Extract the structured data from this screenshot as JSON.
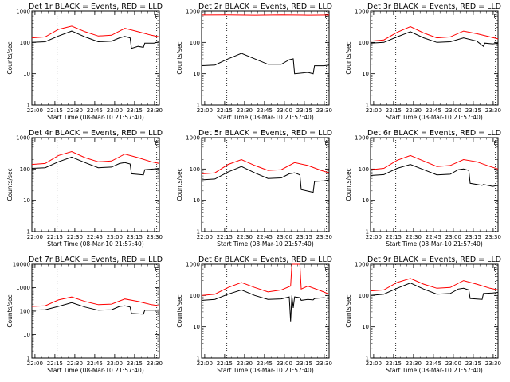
{
  "figure": {
    "x_axis_label": "Start Time (08-Mar-10 21:57:40)",
    "y_axis_label": "Counts/sec",
    "x_tick_labels": [
      "22:00",
      "22:15",
      "22:30",
      "22:45",
      "23:00",
      "23:15",
      "23:30"
    ],
    "colors": {
      "events": "#000000",
      "lld": "#ff0000",
      "marker_line": "#000000",
      "background": "#ffffff"
    },
    "flag_glyph": "E"
  },
  "chart_data": [
    {
      "type": "line",
      "title": "Det 1r BLACK = Events, RED = LLD",
      "scale": "log",
      "ylim": [
        1,
        1000
      ],
      "y_tick_labels": [
        "1",
        "10",
        "100",
        "1000"
      ],
      "x_range_minutes": [
        0,
        96
      ],
      "dotted_markers_min": [
        19,
        94
      ],
      "flag_min": 94,
      "series": [
        {
          "name": "Events",
          "color": "#000000",
          "x": [
            0,
            10,
            20,
            30,
            40,
            50,
            60,
            66,
            70,
            74,
            75,
            80,
            84,
            85,
            92,
            96
          ],
          "y": [
            100,
            105,
            160,
            230,
            150,
            105,
            110,
            140,
            155,
            140,
            65,
            75,
            70,
            95,
            95,
            105
          ]
        },
        {
          "name": "LLD",
          "color": "#ff0000",
          "x": [
            0,
            10,
            20,
            30,
            40,
            50,
            60,
            70,
            80,
            90,
            96
          ],
          "y": [
            140,
            150,
            260,
            330,
            220,
            160,
            170,
            280,
            220,
            170,
            150
          ]
        }
      ]
    },
    {
      "type": "line",
      "title": "Det 2r BLACK = Events, RED = LLD",
      "scale": "log",
      "ylim": [
        1,
        1000
      ],
      "y_tick_labels": [
        "1",
        "10",
        "100",
        "1000"
      ],
      "x_range_minutes": [
        0,
        96
      ],
      "dotted_markers_min": [
        19,
        94
      ],
      "flag_min": 94,
      "series": [
        {
          "name": "Events",
          "color": "#000000",
          "x": [
            0,
            10,
            20,
            30,
            40,
            50,
            60,
            66,
            69,
            70,
            80,
            84,
            85,
            92,
            96
          ],
          "y": [
            18,
            19,
            30,
            45,
            30,
            20,
            20,
            28,
            30,
            10,
            11,
            10,
            18,
            18,
            19
          ]
        },
        {
          "name": "LLD",
          "color": "#ff0000",
          "x": [
            0,
            20,
            40,
            60,
            80,
            96
          ],
          "y": [
            750,
            760,
            740,
            760,
            740,
            750
          ]
        }
      ]
    },
    {
      "type": "line",
      "title": "Det 3r BLACK = Events, RED = LLD",
      "scale": "log",
      "ylim": [
        1,
        1000
      ],
      "y_tick_labels": [
        "1",
        "10",
        "100",
        "1000"
      ],
      "x_range_minutes": [
        0,
        96
      ],
      "dotted_markers_min": [
        19,
        94
      ],
      "flag_min": 94,
      "series": [
        {
          "name": "Events",
          "color": "#000000",
          "x": [
            0,
            10,
            20,
            30,
            40,
            50,
            60,
            70,
            80,
            85,
            86,
            92,
            96
          ],
          "y": [
            95,
            100,
            150,
            220,
            140,
            100,
            105,
            140,
            110,
            75,
            95,
            90,
            95
          ]
        },
        {
          "name": "LLD",
          "color": "#ff0000",
          "x": [
            0,
            10,
            20,
            30,
            40,
            50,
            60,
            70,
            80,
            90,
            96
          ],
          "y": [
            110,
            120,
            210,
            320,
            200,
            140,
            150,
            230,
            190,
            150,
            130
          ]
        }
      ]
    },
    {
      "type": "line",
      "title": "Det 4r BLACK = Events, RED = LLD",
      "scale": "log",
      "ylim": [
        1,
        1000
      ],
      "y_tick_labels": [
        "1",
        "10",
        "100",
        "1000"
      ],
      "x_range_minutes": [
        0,
        96
      ],
      "dotted_markers_min": [
        19,
        94
      ],
      "flag_min": 94,
      "series": [
        {
          "name": "Events",
          "color": "#000000",
          "x": [
            0,
            10,
            20,
            30,
            40,
            50,
            60,
            66,
            70,
            74,
            75,
            84,
            85,
            92,
            96
          ],
          "y": [
            105,
            110,
            170,
            240,
            160,
            110,
            115,
            150,
            160,
            145,
            70,
            65,
            95,
            100,
            105
          ]
        },
        {
          "name": "LLD",
          "color": "#ff0000",
          "x": [
            0,
            10,
            20,
            30,
            40,
            50,
            60,
            70,
            80,
            90,
            96
          ],
          "y": [
            140,
            150,
            270,
            360,
            230,
            170,
            180,
            300,
            230,
            170,
            150
          ]
        }
      ]
    },
    {
      "type": "line",
      "title": "Det 5r BLACK = Events, RED = LLD",
      "scale": "log",
      "ylim": [
        1,
        1000
      ],
      "y_tick_labels": [
        "1",
        "10",
        "100",
        "1000"
      ],
      "x_range_minutes": [
        0,
        96
      ],
      "dotted_markers_min": [
        19,
        94
      ],
      "flag_min": 94,
      "series": [
        {
          "name": "Events",
          "color": "#000000",
          "x": [
            0,
            10,
            20,
            30,
            40,
            50,
            60,
            66,
            70,
            74,
            75,
            84,
            85,
            92,
            96
          ],
          "y": [
            45,
            48,
            80,
            120,
            75,
            50,
            52,
            70,
            75,
            65,
            22,
            18,
            40,
            42,
            45
          ]
        },
        {
          "name": "LLD",
          "color": "#ff0000",
          "x": [
            0,
            10,
            20,
            30,
            40,
            50,
            60,
            70,
            80,
            90,
            96
          ],
          "y": [
            70,
            75,
            140,
            200,
            130,
            90,
            95,
            160,
            130,
            90,
            75
          ]
        }
      ]
    },
    {
      "type": "line",
      "title": "Det 6r BLACK = Events, RED = LLD",
      "scale": "log",
      "ylim": [
        1,
        1000
      ],
      "y_tick_labels": [
        "1",
        "10",
        "100",
        "1000"
      ],
      "x_range_minutes": [
        0,
        96
      ],
      "dotted_markers_min": [
        19,
        94
      ],
      "flag_min": 94,
      "series": [
        {
          "name": "Events",
          "color": "#000000",
          "x": [
            0,
            10,
            20,
            30,
            40,
            50,
            60,
            66,
            70,
            74,
            75,
            84,
            85,
            92,
            96
          ],
          "y": [
            62,
            66,
            105,
            140,
            95,
            65,
            68,
            95,
            100,
            90,
            35,
            30,
            32,
            28,
            30
          ]
        },
        {
          "name": "LLD",
          "color": "#ff0000",
          "x": [
            0,
            10,
            20,
            30,
            40,
            50,
            60,
            70,
            80,
            90,
            96
          ],
          "y": [
            95,
            105,
            190,
            270,
            180,
            120,
            130,
            200,
            170,
            120,
            100
          ]
        }
      ]
    },
    {
      "type": "line",
      "title": "Det 7r BLACK = Events, RED = LLD",
      "scale": "log",
      "ylim": [
        1,
        10000
      ],
      "y_tick_labels": [
        "1",
        "10",
        "100",
        "1000",
        "10000"
      ],
      "x_range_minutes": [
        0,
        96
      ],
      "dotted_markers_min": [
        19,
        94
      ],
      "flag_min": 94,
      "series": [
        {
          "name": "Events",
          "color": "#000000",
          "x": [
            0,
            10,
            20,
            30,
            40,
            50,
            60,
            66,
            70,
            74,
            75,
            84,
            85,
            92,
            96
          ],
          "y": [
            110,
            115,
            160,
            230,
            150,
            110,
            115,
            160,
            170,
            150,
            80,
            75,
            110,
            110,
            115
          ]
        },
        {
          "name": "LLD",
          "color": "#ff0000",
          "x": [
            0,
            10,
            20,
            30,
            40,
            50,
            60,
            70,
            80,
            90,
            96
          ],
          "y": [
            160,
            170,
            300,
            400,
            260,
            190,
            200,
            330,
            260,
            190,
            170
          ]
        }
      ]
    },
    {
      "type": "line",
      "title": "Det 8r BLACK = Events, RED = LLD",
      "scale": "log",
      "ylim": [
        1,
        1000
      ],
      "y_tick_labels": [
        "1",
        "10",
        "100",
        "1000"
      ],
      "x_range_minutes": [
        0,
        96
      ],
      "dotted_markers_min": [
        19,
        94
      ],
      "flag_min": 94,
      "series": [
        {
          "name": "Events",
          "color": "#000000",
          "x": [
            0,
            10,
            20,
            30,
            40,
            50,
            60,
            66,
            67,
            68,
            69,
            70,
            74,
            75,
            80,
            84,
            85,
            92,
            96
          ],
          "y": [
            70,
            75,
            110,
            150,
            100,
            75,
            78,
            90,
            15,
            100,
            40,
            90,
            85,
            70,
            75,
            72,
            80,
            85,
            80
          ]
        },
        {
          "name": "LLD",
          "color": "#ff0000",
          "x": [
            0,
            10,
            20,
            30,
            40,
            50,
            60,
            67,
            68,
            70,
            74,
            75,
            80,
            90,
            96
          ],
          "y": [
            100,
            110,
            180,
            260,
            180,
            130,
            150,
            200,
            1000,
            1000,
            1000,
            160,
            200,
            140,
            110
          ]
        }
      ]
    },
    {
      "type": "line",
      "title": "Det 9r BLACK = Events, RED = LLD",
      "scale": "log",
      "ylim": [
        1,
        1000
      ],
      "y_tick_labels": [
        "1",
        "10",
        "100",
        "1000"
      ],
      "x_range_minutes": [
        0,
        96
      ],
      "dotted_markers_min": [
        19,
        94
      ],
      "flag_min": 94,
      "series": [
        {
          "name": "Events",
          "color": "#000000",
          "x": [
            0,
            10,
            20,
            30,
            40,
            50,
            60,
            66,
            70,
            74,
            75,
            84,
            85,
            92,
            96
          ],
          "y": [
            100,
            110,
            170,
            250,
            160,
            110,
            115,
            160,
            170,
            150,
            80,
            75,
            115,
            120,
            125
          ]
        },
        {
          "name": "LLD",
          "color": "#ff0000",
          "x": [
            0,
            10,
            20,
            30,
            40,
            50,
            60,
            70,
            80,
            90,
            96
          ],
          "y": [
            140,
            150,
            260,
            350,
            230,
            170,
            180,
            300,
            230,
            170,
            150
          ]
        }
      ]
    }
  ]
}
